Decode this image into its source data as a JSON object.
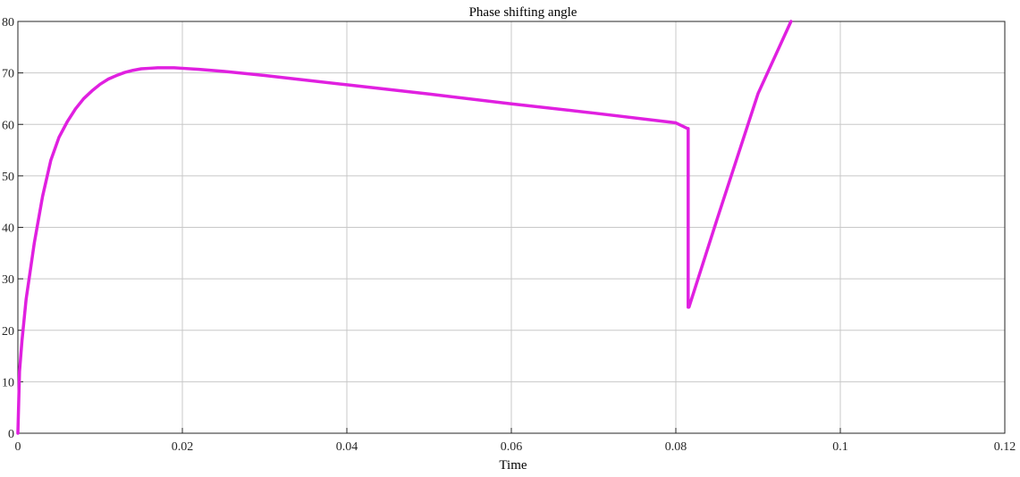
{
  "chart_data": {
    "type": "line",
    "title": "Phase shifting angle",
    "xlabel": "Time",
    "ylabel": "",
    "xlim": [
      0,
      0.12
    ],
    "ylim": [
      0,
      80
    ],
    "xticks": [
      0,
      0.02,
      0.04,
      0.06,
      0.08,
      0.1,
      0.12
    ],
    "xtick_labels": [
      "0",
      "0.02",
      "0.04",
      "0.06",
      "0.08",
      "0.1",
      "0.12"
    ],
    "yticks": [
      0,
      10,
      20,
      30,
      40,
      50,
      60,
      70,
      80
    ],
    "ytick_labels": [
      "0",
      "10",
      "20",
      "30",
      "40",
      "50",
      "60",
      "70",
      "80"
    ],
    "grid": true,
    "series": [
      {
        "color": "#e020e0",
        "x": [
          0,
          0.0002,
          0.0005,
          0.001,
          0.002,
          0.003,
          0.004,
          0.005,
          0.006,
          0.007,
          0.008,
          0.009,
          0.01,
          0.011,
          0.012,
          0.013,
          0.014,
          0.015,
          0.016,
          0.017,
          0.018,
          0.019,
          0.02,
          0.022,
          0.025,
          0.03,
          0.04,
          0.05,
          0.06,
          0.07,
          0.08,
          0.0814,
          0.0815,
          0.0815,
          0.0816,
          0.085,
          0.09,
          0.094
        ],
        "y": [
          0,
          12,
          18,
          26,
          37,
          46,
          53,
          57.5,
          60.5,
          63,
          65,
          66.5,
          67.8,
          68.8,
          69.5,
          70.1,
          70.5,
          70.8,
          70.9,
          71.0,
          71.0,
          71.0,
          70.9,
          70.7,
          70.3,
          69.5,
          67.7,
          65.9,
          64.0,
          62.2,
          60.3,
          59.2,
          59.2,
          24.5,
          24.5,
          41.5,
          66,
          80
        ]
      }
    ]
  }
}
